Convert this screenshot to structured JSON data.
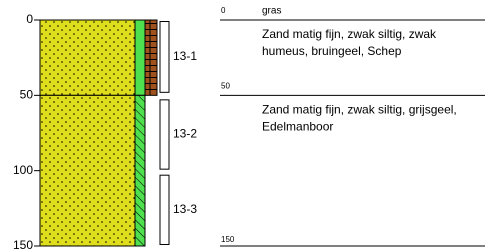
{
  "axis": {
    "ticks": [
      0,
      50,
      100,
      150
    ],
    "lim": [
      0,
      150
    ]
  },
  "surface_note": "gras",
  "layers": [
    {
      "top": 0,
      "bottom": 50,
      "description": [
        "Zand matig fijn, zwak siltig, zwak",
        "humeus, bruingeel, Schep"
      ]
    },
    {
      "top": 50,
      "bottom": 150,
      "description": [
        "Zand matig fijn, zwak siltig, grijsgeel,",
        "Edelmanboor"
      ]
    }
  ],
  "samples": [
    {
      "label": "13-1",
      "top": 1,
      "bottom": 48
    },
    {
      "label": "13-2",
      "top": 53,
      "bottom": 99
    },
    {
      "label": "13-3",
      "top": 103,
      "bottom": 149
    }
  ]
}
